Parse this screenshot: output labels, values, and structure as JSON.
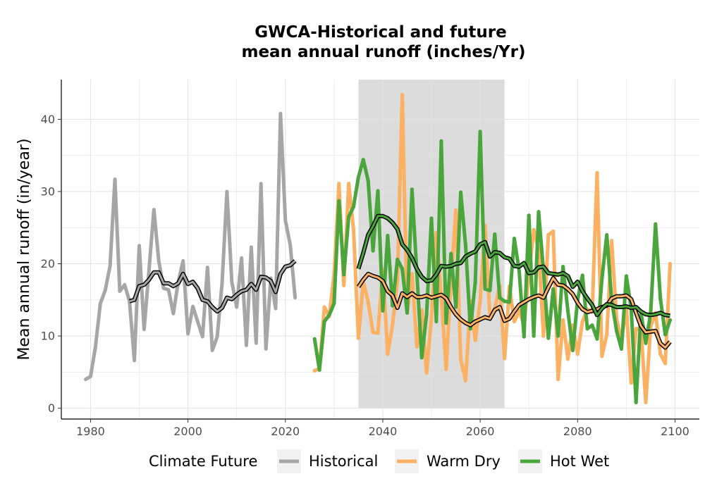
{
  "chart_data": {
    "type": "line",
    "title": "GWCA-Historical and future",
    "subtitle": "mean annual runoff (inches/Yr)",
    "ylabel": "Mean annual runoff (in/year)",
    "xlabel": "",
    "xlim": [
      1974,
      2105
    ],
    "ylim": [
      -1.5,
      45.5
    ],
    "x_ticks": [
      1980,
      2000,
      2020,
      2040,
      2060,
      2080,
      2100
    ],
    "y_ticks": [
      0,
      10,
      20,
      30,
      40
    ],
    "grid": true,
    "shaded_period": [
      2035,
      2065
    ],
    "legend": {
      "title": "Climate Future",
      "position": "bottom",
      "entries": [
        "Historical",
        "Warm Dry",
        "Hot Wet"
      ]
    },
    "colors": {
      "Historical": "#a6a6a6",
      "Warm Dry": "#fbb062",
      "Hot Wet": "#4aa63c",
      "smooth_outline": "#000000",
      "shade": "#dcdcdc"
    },
    "series": [
      {
        "name": "Historical",
        "x": [
          1979,
          1980,
          1981,
          1982,
          1983,
          1984,
          1985,
          1986,
          1987,
          1988,
          1989,
          1990,
          1991,
          1992,
          1993,
          1994,
          1995,
          1996,
          1997,
          1998,
          1999,
          2000,
          2001,
          2002,
          2003,
          2004,
          2005,
          2006,
          2007,
          2008,
          2009,
          2010,
          2011,
          2012,
          2013,
          2014,
          2015,
          2016,
          2017,
          2018,
          2019,
          2020,
          2021,
          2022
        ],
        "values": [
          4,
          4.4,
          8.5,
          14.5,
          16.3,
          19.7,
          31.7,
          16.2,
          17.1,
          14.8,
          6.6,
          22.5,
          10.9,
          19.2,
          27.5,
          20.4,
          16.6,
          16.4,
          13.1,
          17.5,
          20.4,
          10.3,
          14.1,
          12.0,
          9.9,
          19.5,
          8.0,
          9.9,
          17.3,
          30.0,
          17.5,
          14.0,
          20.8,
          8.7,
          22.3,
          9.0,
          31.1,
          8.2,
          18.0,
          13.8,
          40.8,
          26.0,
          22.6,
          15.3
        ]
      },
      {
        "name": "Warm Dry",
        "x": [
          2026,
          2027,
          2028,
          2029,
          2030,
          2031,
          2032,
          2033,
          2034,
          2035,
          2036,
          2037,
          2038,
          2039,
          2040,
          2041,
          2042,
          2043,
          2044,
          2045,
          2046,
          2047,
          2048,
          2049,
          2050,
          2051,
          2052,
          2053,
          2054,
          2055,
          2056,
          2057,
          2058,
          2059,
          2060,
          2061,
          2062,
          2063,
          2064,
          2065,
          2066,
          2067,
          2068,
          2069,
          2070,
          2071,
          2072,
          2073,
          2074,
          2075,
          2076,
          2077,
          2078,
          2079,
          2080,
          2081,
          2082,
          2083,
          2084,
          2085,
          2086,
          2087,
          2088,
          2089,
          2090,
          2091,
          2092,
          2093,
          2094,
          2095,
          2096,
          2097,
          2098,
          2099
        ],
        "values": [
          5.2,
          5.5,
          14.0,
          12.7,
          18.5,
          31.1,
          17.0,
          31.1,
          24.7,
          9.7,
          17.5,
          14.7,
          10.5,
          10.4,
          19.2,
          7.5,
          11.5,
          17.6,
          43.4,
          13.2,
          18.6,
          8.5,
          13.6,
          4.9,
          12.5,
          24.3,
          15.5,
          5.4,
          17.5,
          27.4,
          6.8,
          3.8,
          14.8,
          9.4,
          14.9,
          25.3,
          12.6,
          13.8,
          17.0,
          6.9,
          16.9,
          12.0,
          13.5,
          11.5,
          18.5,
          24.7,
          22.0,
          10.0,
          24.0,
          24.5,
          4.0,
          12.2,
          6.8,
          11.5,
          7.5,
          12.0,
          13.7,
          13.3,
          32.6,
          7.2,
          10.2,
          23.2,
          12.4,
          9.3,
          14.0,
          3.5,
          11.0,
          11.0,
          0.8,
          11.3,
          13.2,
          7.5,
          6.2,
          20.0
        ]
      },
      {
        "name": "Hot Wet",
        "x": [
          2026,
          2027,
          2028,
          2029,
          2030,
          2031,
          2032,
          2033,
          2034,
          2035,
          2036,
          2037,
          2038,
          2039,
          2040,
          2041,
          2042,
          2043,
          2044,
          2045,
          2046,
          2047,
          2048,
          2049,
          2050,
          2051,
          2052,
          2053,
          2054,
          2055,
          2056,
          2057,
          2058,
          2059,
          2060,
          2061,
          2062,
          2063,
          2064,
          2065,
          2066,
          2067,
          2068,
          2069,
          2070,
          2071,
          2072,
          2073,
          2074,
          2075,
          2076,
          2077,
          2078,
          2079,
          2080,
          2081,
          2082,
          2083,
          2084,
          2085,
          2086,
          2087,
          2088,
          2089,
          2090,
          2091,
          2092,
          2093,
          2094,
          2095,
          2096,
          2097,
          2098,
          2099
        ],
        "values": [
          9.6,
          5.3,
          12.0,
          12.9,
          14.5,
          28.7,
          18.5,
          26.5,
          27.9,
          32.0,
          34.4,
          31.5,
          21.8,
          30.1,
          13.5,
          23.9,
          14.2,
          20.6,
          19.3,
          13.2,
          30.3,
          18.7,
          7.0,
          13.0,
          26.3,
          12.0,
          37.0,
          11.8,
          21.4,
          14.0,
          29.9,
          22.6,
          11.0,
          17.5,
          38.3,
          16.5,
          16.3,
          24.1,
          15.3,
          14.8,
          14.7,
          23.5,
          19.0,
          9.9,
          26.7,
          10.0,
          27.2,
          19.0,
          9.7,
          16.5,
          10.0,
          19.6,
          13.5,
          8.0,
          15.0,
          18.4,
          11.0,
          11.5,
          9.6,
          17.9,
          24.0,
          14.9,
          10.7,
          8.2,
          18.3,
          13.8,
          0.8,
          13.3,
          9.0,
          13.2,
          25.5,
          15.2,
          10.2,
          12.2
        ]
      }
    ],
    "smoothed_series": [
      {
        "name": "Historical",
        "x": [
          1988,
          1989,
          1990,
          1991,
          1992,
          1993,
          1994,
          1995,
          1996,
          1997,
          1998,
          1999,
          2000,
          2001,
          2002,
          2003,
          2004,
          2005,
          2006,
          2007,
          2008,
          2009,
          2010,
          2011,
          2012,
          2013,
          2014,
          2015,
          2016,
          2017,
          2018,
          2019,
          2020,
          2021,
          2022
        ],
        "values": [
          14.8,
          15.0,
          16.9,
          17.1,
          17.8,
          18.8,
          18.8,
          17.3,
          17.3,
          16.9,
          17.3,
          18.6,
          17.2,
          17.5,
          16.6,
          15.0,
          14.8,
          14.0,
          13.4,
          13.9,
          15.3,
          15.1,
          15.7,
          16.2,
          16.4,
          17.2,
          16.4,
          18.2,
          18.1,
          17.6,
          16.1,
          18.6,
          19.6,
          19.8,
          20.4
        ]
      },
      {
        "name": "Warm Dry",
        "x": [
          2035,
          2036,
          2037,
          2038,
          2039,
          2040,
          2041,
          2042,
          2043,
          2044,
          2045,
          2046,
          2047,
          2048,
          2049,
          2050,
          2051,
          2052,
          2053,
          2054,
          2055,
          2056,
          2057,
          2058,
          2059,
          2060,
          2061,
          2062,
          2063,
          2064,
          2065,
          2066,
          2067,
          2068,
          2069,
          2070,
          2071,
          2072,
          2073,
          2074,
          2075,
          2076,
          2077,
          2078,
          2079,
          2080,
          2081,
          2082,
          2083,
          2084,
          2085,
          2086,
          2087,
          2088,
          2089,
          2090,
          2091,
          2092,
          2093,
          2094,
          2095,
          2096,
          2097,
          2098,
          2099
        ],
        "values": [
          16.8,
          17.8,
          18.6,
          18.3,
          18.1,
          17.6,
          16.2,
          15.6,
          13.9,
          15.9,
          15.4,
          15.9,
          15.4,
          15.4,
          15.6,
          15.3,
          15.5,
          15.7,
          15.2,
          14.0,
          13.0,
          12.3,
          11.8,
          11.5,
          12.0,
          12.3,
          12.6,
          12.4,
          13.6,
          14.0,
          12.1,
          12.4,
          13.4,
          14.3,
          14.7,
          15.1,
          15.4,
          15.6,
          15.3,
          16.7,
          18.0,
          17.1,
          17.0,
          16.5,
          15.8,
          14.6,
          13.7,
          13.3,
          13.5,
          13.7,
          14.0,
          14.2,
          15.2,
          15.5,
          15.5,
          15.6,
          15.1,
          13.2,
          11.4,
          10.5,
          10.6,
          10.7,
          9.0,
          8.4,
          9.2
        ]
      },
      {
        "name": "Hot Wet",
        "x": [
          2035,
          2036,
          2037,
          2038,
          2039,
          2040,
          2041,
          2042,
          2043,
          2044,
          2045,
          2046,
          2047,
          2048,
          2049,
          2050,
          2051,
          2052,
          2053,
          2054,
          2055,
          2056,
          2057,
          2058,
          2059,
          2060,
          2061,
          2062,
          2063,
          2064,
          2065,
          2066,
          2067,
          2068,
          2069,
          2070,
          2071,
          2072,
          2073,
          2074,
          2075,
          2076,
          2077,
          2078,
          2079,
          2080,
          2081,
          2082,
          2083,
          2084,
          2085,
          2086,
          2087,
          2088,
          2089,
          2090,
          2091,
          2092,
          2093,
          2094,
          2095,
          2096,
          2097,
          2098,
          2099
        ],
        "values": [
          19.3,
          21.5,
          24.0,
          25.2,
          26.6,
          26.6,
          26.3,
          25.7,
          24.8,
          22.7,
          21.9,
          20.8,
          19.3,
          18.2,
          17.6,
          17.7,
          18.5,
          19.7,
          19.6,
          19.7,
          20.0,
          20.1,
          21.0,
          21.4,
          21.7,
          22.7,
          23.0,
          21.0,
          21.6,
          21.5,
          20.9,
          20.7,
          19.7,
          19.6,
          20.1,
          18.7,
          18.8,
          19.5,
          19.6,
          18.7,
          18.6,
          18.5,
          18.7,
          18.3,
          16.8,
          17.5,
          16.2,
          15.2,
          14.3,
          12.9,
          13.8,
          14.4,
          14.3,
          14.0,
          14.0,
          14.1,
          13.9,
          14.0,
          13.4,
          13.0,
          12.9,
          13.0,
          13.2,
          12.9,
          12.8
        ]
      }
    ]
  }
}
